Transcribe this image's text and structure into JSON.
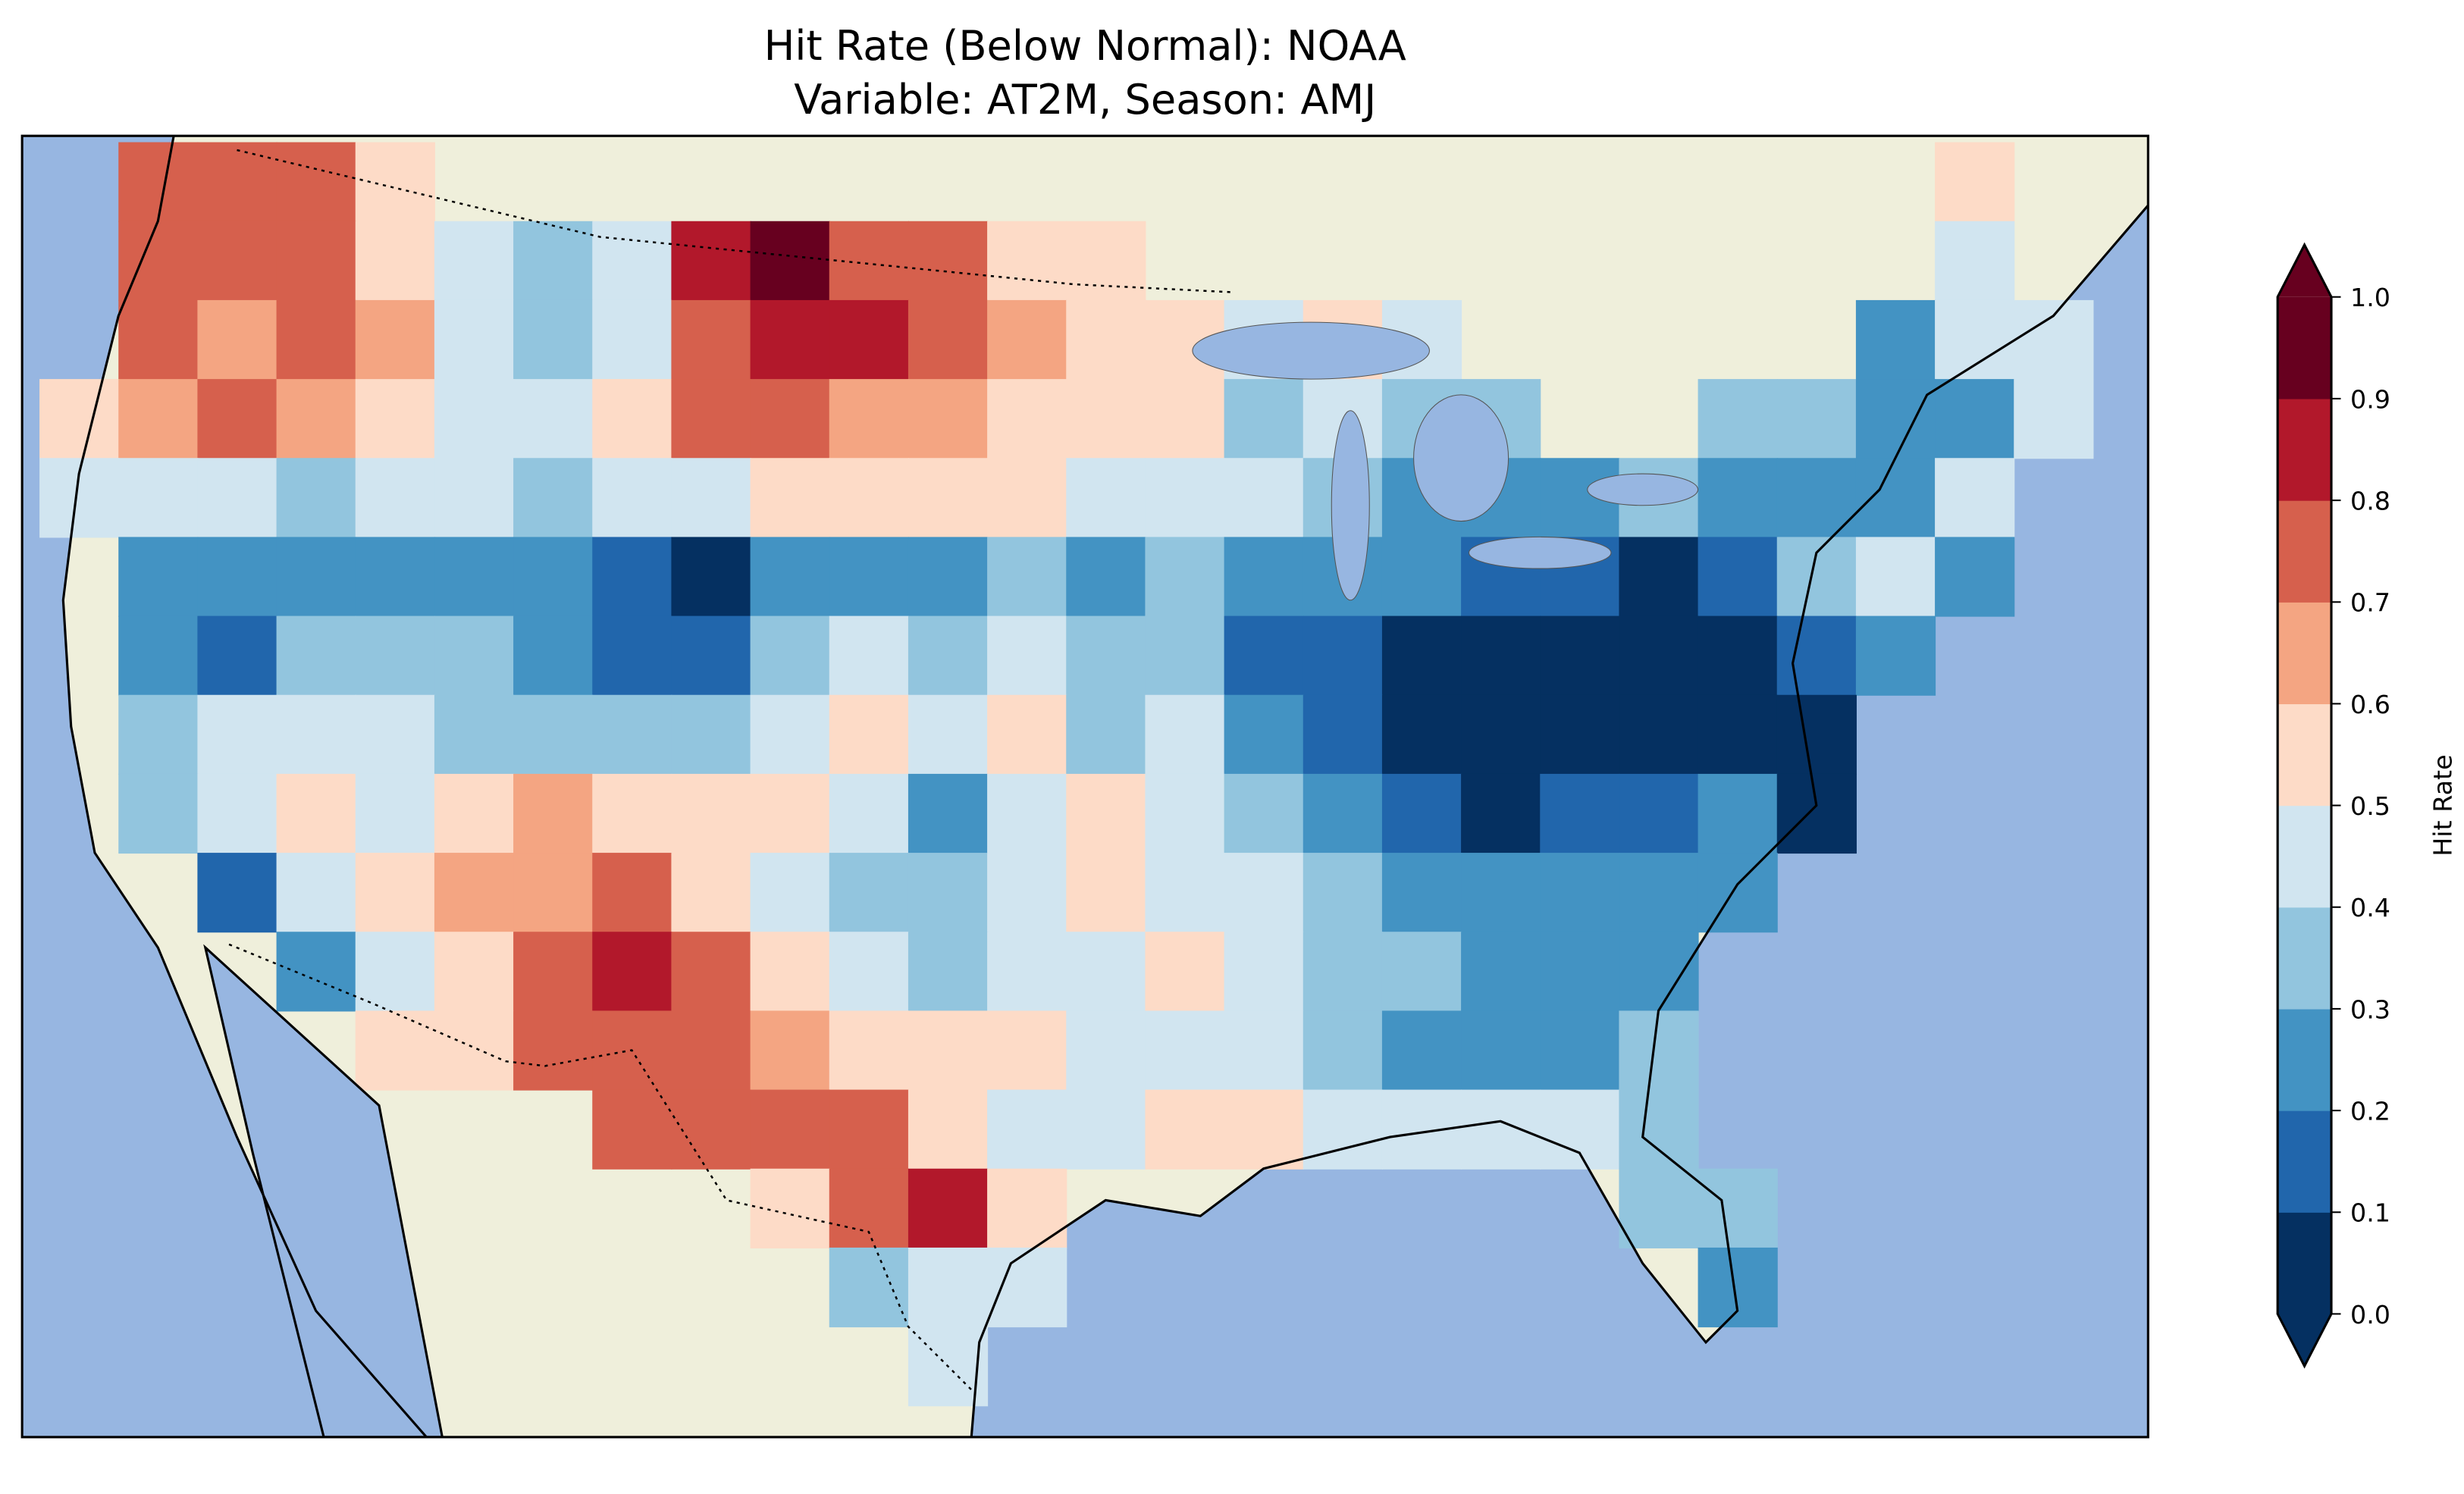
{
  "chart_data": {
    "type": "heatmap",
    "title_line1": "Hit Rate (Below Normal): NOAA",
    "title_line2": "Variable: AT2M, Season: AMJ",
    "colorbar": {
      "label": "Hit Rate",
      "ticks": [
        "0.0",
        "0.1",
        "0.2",
        "0.3",
        "0.4",
        "0.5",
        "0.6",
        "0.7",
        "0.8",
        "0.9",
        "1.0"
      ],
      "range": [
        0,
        1
      ],
      "extend": "both",
      "bin_colors": [
        "#053061",
        "#2166ac",
        "#4393c3",
        "#92c5de",
        "#d1e5f0",
        "#fddbc7",
        "#f4a582",
        "#d6604d",
        "#b2182b",
        "#67001f"
      ]
    },
    "colors": {
      "ocean": "#97b6e1",
      "land": "#efefdb"
    },
    "grid": [
      [
        null,
        0.75,
        0.75,
        0.75,
        0.55,
        null,
        null,
        null,
        null,
        null,
        null,
        null,
        null,
        null,
        null,
        null,
        null,
        null,
        null,
        null,
        null,
        null,
        null,
        null,
        0.55,
        null,
        null
      ],
      [
        null,
        0.75,
        0.75,
        0.75,
        0.55,
        0.45,
        0.35,
        0.45,
        0.85,
        0.95,
        0.75,
        0.75,
        0.55,
        0.55,
        null,
        null,
        null,
        null,
        null,
        null,
        null,
        null,
        null,
        null,
        0.45,
        null,
        null
      ],
      [
        null,
        0.75,
        0.65,
        0.75,
        0.65,
        0.45,
        0.35,
        0.45,
        0.75,
        0.85,
        0.85,
        0.75,
        0.65,
        0.55,
        0.55,
        0.45,
        0.55,
        0.45,
        null,
        null,
        null,
        null,
        null,
        0.25,
        0.45,
        0.45,
        null
      ],
      [
        0.55,
        0.65,
        0.75,
        0.65,
        0.55,
        0.45,
        0.45,
        0.55,
        0.75,
        0.75,
        0.65,
        0.65,
        0.55,
        0.55,
        0.55,
        0.35,
        0.45,
        0.35,
        0.35,
        null,
        null,
        0.35,
        0.35,
        0.25,
        0.25,
        0.45,
        null
      ],
      [
        0.45,
        0.45,
        0.45,
        0.35,
        0.45,
        0.45,
        0.35,
        0.45,
        0.45,
        0.55,
        0.55,
        0.55,
        0.55,
        0.45,
        0.45,
        0.45,
        0.35,
        0.25,
        0.25,
        0.25,
        0.35,
        0.25,
        0.25,
        0.25,
        0.45,
        null,
        null
      ],
      [
        null,
        0.25,
        0.25,
        0.25,
        0.25,
        0.25,
        0.25,
        0.15,
        0.05,
        0.25,
        0.25,
        0.25,
        0.35,
        0.25,
        0.35,
        0.25,
        0.25,
        0.25,
        0.15,
        0.15,
        0.05,
        0.15,
        0.35,
        0.45,
        0.25,
        null,
        null
      ],
      [
        null,
        0.25,
        0.15,
        0.35,
        0.35,
        0.35,
        0.25,
        0.15,
        0.15,
        0.35,
        0.45,
        0.35,
        0.45,
        0.35,
        0.35,
        0.15,
        0.15,
        0.05,
        0.05,
        0.05,
        0.05,
        0.05,
        0.15,
        0.25,
        null,
        null,
        null
      ],
      [
        null,
        0.35,
        0.45,
        0.45,
        0.45,
        0.35,
        0.35,
        0.35,
        0.35,
        0.45,
        0.55,
        0.45,
        0.55,
        0.35,
        0.45,
        0.25,
        0.15,
        0.05,
        0.05,
        0.05,
        0.05,
        0.05,
        0.05,
        null,
        null,
        null,
        null
      ],
      [
        null,
        0.35,
        0.45,
        0.55,
        0.45,
        0.55,
        0.65,
        0.55,
        0.55,
        0.55,
        0.45,
        0.25,
        0.45,
        0.55,
        0.45,
        0.35,
        0.25,
        0.15,
        0.05,
        0.15,
        0.15,
        0.25,
        0.05,
        null,
        null,
        null,
        null
      ],
      [
        null,
        null,
        0.15,
        0.45,
        0.55,
        0.65,
        0.65,
        0.75,
        0.55,
        0.45,
        0.35,
        0.35,
        0.45,
        0.55,
        0.45,
        0.45,
        0.35,
        0.25,
        0.25,
        0.25,
        0.25,
        0.25,
        null,
        null,
        null,
        null,
        null
      ],
      [
        null,
        null,
        null,
        0.25,
        0.45,
        0.55,
        0.75,
        0.85,
        0.75,
        0.55,
        0.45,
        0.35,
        0.45,
        0.45,
        0.55,
        0.45,
        0.35,
        0.35,
        0.25,
        0.25,
        0.25,
        null,
        null,
        null,
        null,
        null,
        null
      ],
      [
        null,
        null,
        null,
        null,
        0.55,
        0.55,
        0.75,
        0.75,
        0.75,
        0.65,
        0.55,
        0.55,
        0.55,
        0.45,
        0.45,
        0.45,
        0.35,
        0.25,
        0.25,
        0.25,
        0.35,
        null,
        null,
        null,
        null,
        null,
        null
      ],
      [
        null,
        null,
        null,
        null,
        null,
        null,
        null,
        0.75,
        0.75,
        0.75,
        0.75,
        0.55,
        0.45,
        0.45,
        0.55,
        0.55,
        0.45,
        0.45,
        0.45,
        0.45,
        0.35,
        null,
        null,
        null,
        null,
        null,
        null
      ],
      [
        null,
        null,
        null,
        null,
        null,
        null,
        null,
        null,
        null,
        0.55,
        0.75,
        0.85,
        0.55,
        null,
        null,
        null,
        null,
        null,
        null,
        null,
        0.35,
        0.35,
        null,
        null,
        null,
        null,
        null
      ],
      [
        null,
        null,
        null,
        null,
        null,
        null,
        null,
        null,
        null,
        null,
        0.35,
        0.45,
        0.45,
        null,
        null,
        null,
        null,
        null,
        null,
        null,
        null,
        0.25,
        null,
        null,
        null,
        null,
        null
      ],
      [
        null,
        null,
        null,
        null,
        null,
        null,
        null,
        null,
        null,
        null,
        null,
        0.45,
        null,
        null,
        null,
        null,
        null,
        null,
        null,
        null,
        null,
        null,
        null,
        null,
        null,
        null,
        null
      ]
    ]
  }
}
